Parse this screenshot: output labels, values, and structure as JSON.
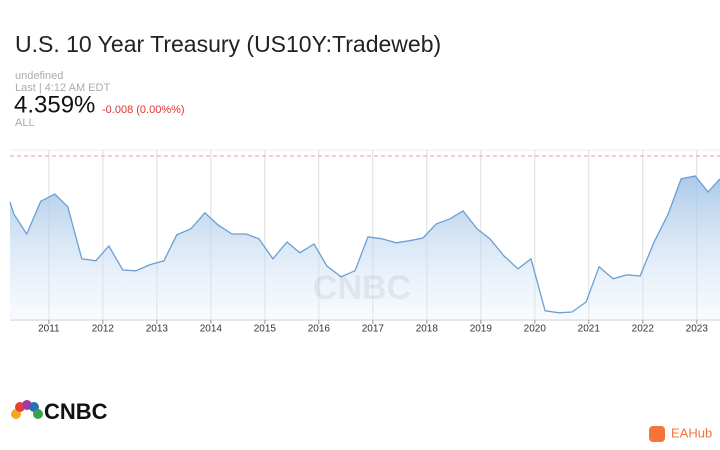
{
  "header": {
    "title": "U.S. 10 Year Treasury (US10Y:Tradeweb)",
    "exchange": "undefined",
    "last_time": "Last | 4:12 AM EDT",
    "price": "4.359%",
    "change": "-0.008 (0.00%%)",
    "range": "ALL"
  },
  "chart_data": {
    "type": "line",
    "color": "#6a9fd4",
    "area": true,
    "grid": true,
    "x": [
      2010.28,
      2010.35,
      2010.59,
      2010.85,
      2011.11,
      2011.35,
      2011.61,
      2011.87,
      2012.11,
      2012.37,
      2012.61,
      2012.87,
      2013.13,
      2013.37,
      2013.63,
      2013.89,
      2014.13,
      2014.39,
      2014.65,
      2014.89,
      2015.15,
      2015.41,
      2015.65,
      2015.91,
      2016.15,
      2016.41,
      2016.67,
      2016.91,
      2017.17,
      2017.43,
      2017.67,
      2017.93,
      2018.17,
      2018.43,
      2018.67,
      2018.93,
      2019.17,
      2019.43,
      2019.69,
      2019.93,
      2020.19,
      2020.45,
      2020.69,
      2020.95,
      2021.19,
      2021.45,
      2021.71,
      2021.95,
      2022.21,
      2022.47,
      2022.71,
      2022.97,
      2023.21,
      2023.43
    ],
    "values": [
      3.35,
      3.05,
      2.55,
      3.37,
      3.55,
      3.23,
      1.93,
      1.88,
      2.25,
      1.65,
      1.63,
      1.78,
      1.88,
      2.53,
      2.68,
      3.08,
      2.78,
      2.55,
      2.55,
      2.43,
      1.93,
      2.35,
      2.08,
      2.3,
      1.75,
      1.48,
      1.63,
      2.48,
      2.43,
      2.33,
      2.38,
      2.45,
      2.8,
      2.93,
      3.13,
      2.68,
      2.43,
      2.0,
      1.68,
      1.93,
      0.63,
      0.58,
      0.6,
      0.85,
      1.73,
      1.43,
      1.53,
      1.5,
      2.35,
      3.05,
      3.93,
      4.0,
      3.6,
      3.93
    ],
    "xlim": [
      2010.28,
      2023.43
    ],
    "xticks": [
      2011,
      2012,
      2013,
      2014,
      2015,
      2016,
      2017,
      2018,
      2019,
      2020,
      2021,
      2022,
      2023
    ],
    "ylim": [
      0.4,
      4.65
    ],
    "reference_line": 4.5
  },
  "watermark": "CNBC",
  "logo": "CNBC",
  "badge": "EAHub"
}
